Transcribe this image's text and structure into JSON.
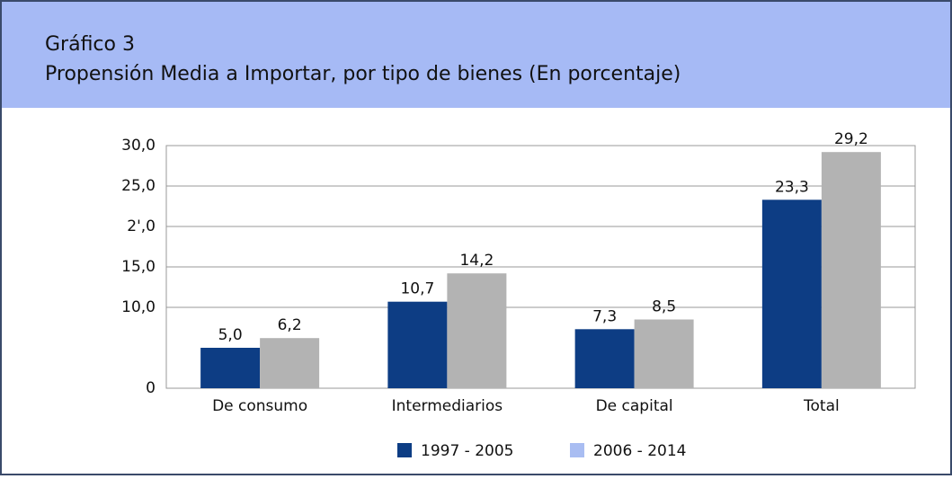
{
  "chart_data": {
    "type": "bar",
    "title": "Gráfico 3",
    "subtitle": "Propensión Media a Importar, por tipo de bienes (En porcentaje)",
    "categories": [
      "De consumo",
      "Intermediarios",
      "De capital",
      "Total"
    ],
    "series": [
      {
        "name": "1997 - 2005",
        "color": "#0d3d84",
        "legend_color": "#0d3d84",
        "values": [
          5.0,
          10.7,
          7.3,
          23.3
        ],
        "value_labels": [
          "5,0",
          "10,7",
          "7,3",
          "23,3"
        ]
      },
      {
        "name": "2006 - 2014",
        "color": "#b3b3b3",
        "legend_color": "#a9bdf2",
        "values": [
          6.2,
          14.2,
          8.5,
          29.2
        ],
        "value_labels": [
          "6,2",
          "14,2",
          "8,5",
          "29,2"
        ]
      }
    ],
    "ylim": [
      0,
      30
    ],
    "yticks": [
      0,
      {
        "value": 10,
        "label": "10,0"
      },
      {
        "value": 15,
        "label": "15,0"
      },
      {
        "value": 20,
        "label": "2',0"
      },
      {
        "value": 25,
        "label": "25,0"
      },
      {
        "value": 30,
        "label": "30,0"
      }
    ],
    "grid": true
  }
}
